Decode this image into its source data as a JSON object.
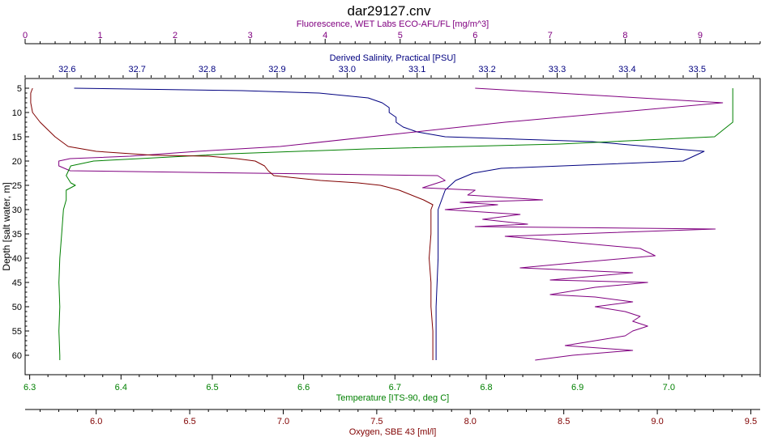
{
  "chart_data": {
    "type": "line",
    "title": "dar29127.cnv",
    "grid": false,
    "y_axis": {
      "label": "Depth [salt water, m]",
      "range": [
        64,
        3
      ],
      "ticks": [
        5,
        10,
        15,
        20,
        25,
        30,
        35,
        40,
        45,
        50,
        55,
        60
      ]
    },
    "x_axes": [
      {
        "key": "fluorescence",
        "label": "Fluorescence, WET Labs ECO-AFL/FL [mg/m^3]",
        "position": "top-1",
        "color": "#800080",
        "range": [
          0,
          9.8
        ],
        "ticks": [
          0,
          1,
          2,
          3,
          4,
          5,
          6,
          7,
          8,
          9
        ]
      },
      {
        "key": "salinity",
        "label": "Derived Salinity, Practical [PSU]",
        "position": "top-2",
        "color": "#000080",
        "range": [
          32.54,
          33.59
        ],
        "ticks": [
          "32.6",
          "32.7",
          "32.8",
          "32.9",
          "33.0",
          "33.1",
          "33.2",
          "33.3",
          "33.4",
          "33.5"
        ]
      },
      {
        "key": "temperature",
        "label": "Temperature [ITS-90, deg C]",
        "position": "bottom-1",
        "color": "#008000",
        "range": [
          6.295,
          7.1
        ],
        "ticks": [
          "6.3",
          "6.4",
          "6.5",
          "6.6",
          "6.7",
          "6.8",
          "6.9",
          "7.0"
        ]
      },
      {
        "key": "oxygen",
        "label": "Oxygen, SBE 43 [ml/l]",
        "position": "bottom-2",
        "color": "#800000",
        "range": [
          5.62,
          9.55
        ],
        "ticks": [
          "6.0",
          "6.5",
          "7.0",
          "7.5",
          "8.0",
          "8.5",
          "9.0",
          "9.5"
        ]
      }
    ],
    "series": [
      {
        "axis": "salinity",
        "color": "#000080",
        "points": [
          [
            32.61,
            5
          ],
          [
            32.85,
            5.5
          ],
          [
            32.96,
            6
          ],
          [
            33.03,
            7
          ],
          [
            33.05,
            8
          ],
          [
            33.06,
            9
          ],
          [
            33.06,
            10
          ],
          [
            33.07,
            11
          ],
          [
            33.07,
            12
          ],
          [
            33.08,
            13
          ],
          [
            33.1,
            14
          ],
          [
            33.14,
            15
          ],
          [
            33.35,
            16
          ],
          [
            33.51,
            18
          ],
          [
            33.48,
            20
          ],
          [
            33.22,
            21.5
          ],
          [
            33.18,
            22.5
          ],
          [
            33.155,
            24
          ],
          [
            33.14,
            26
          ],
          [
            33.13,
            30
          ],
          [
            33.13,
            40
          ],
          [
            33.127,
            50
          ],
          [
            33.127,
            61
          ]
        ]
      },
      {
        "axis": "fluorescence",
        "color": "#800080",
        "points": [
          [
            6.0,
            5
          ],
          [
            9.3,
            8
          ],
          [
            6.4,
            12
          ],
          [
            3.4,
            17
          ],
          [
            2.3,
            18
          ],
          [
            1.4,
            19
          ],
          [
            0.6,
            19.5
          ],
          [
            0.45,
            20
          ],
          [
            0.45,
            21
          ],
          [
            0.6,
            22
          ],
          [
            5.5,
            23
          ],
          [
            5.6,
            24
          ],
          [
            5.3,
            25.5
          ],
          [
            6,
            26
          ],
          [
            5.9,
            27
          ],
          [
            6.9,
            28
          ],
          [
            5.8,
            28.5
          ],
          [
            6.3,
            29
          ],
          [
            5.6,
            30
          ],
          [
            6.6,
            31
          ],
          [
            6.1,
            32
          ],
          [
            6.7,
            33
          ],
          [
            6.0,
            33.5
          ],
          [
            9.2,
            34
          ],
          [
            6.4,
            35.5
          ],
          [
            8.2,
            38
          ],
          [
            8.4,
            39.5
          ],
          [
            7.3,
            41
          ],
          [
            6.6,
            42
          ],
          [
            8.1,
            43
          ],
          [
            7.0,
            44.5
          ],
          [
            8.3,
            45
          ],
          [
            7.6,
            46
          ],
          [
            7.0,
            47.5
          ],
          [
            7.6,
            48
          ],
          [
            8.1,
            49
          ],
          [
            7.6,
            50
          ],
          [
            8.0,
            51
          ],
          [
            8.2,
            52
          ],
          [
            8.1,
            53
          ],
          [
            8.3,
            54
          ],
          [
            8.1,
            55
          ],
          [
            8.0,
            56
          ],
          [
            7.6,
            57
          ],
          [
            7.2,
            58
          ],
          [
            8.1,
            59
          ],
          [
            7.3,
            60
          ],
          [
            6.8,
            61
          ]
        ]
      },
      {
        "axis": "temperature",
        "color": "#008000",
        "points": [
          [
            7.07,
            5
          ],
          [
            7.07,
            8
          ],
          [
            7.07,
            10
          ],
          [
            7.07,
            12
          ],
          [
            7.05,
            15
          ],
          [
            6.88,
            16.5
          ],
          [
            6.67,
            17.5
          ],
          [
            6.52,
            18.5
          ],
          [
            6.45,
            19.2
          ],
          [
            6.37,
            20
          ],
          [
            6.345,
            21
          ],
          [
            6.34,
            23
          ],
          [
            6.345,
            24.5
          ],
          [
            6.35,
            25
          ],
          [
            6.34,
            26
          ],
          [
            6.34,
            28
          ],
          [
            6.337,
            30
          ],
          [
            6.335,
            35
          ],
          [
            6.333,
            40
          ],
          [
            6.332,
            45
          ],
          [
            6.333,
            50
          ],
          [
            6.332,
            55
          ],
          [
            6.333,
            60
          ],
          [
            6.333,
            61
          ]
        ]
      },
      {
        "axis": "oxygen",
        "color": "#800000",
        "points": [
          [
            5.66,
            5
          ],
          [
            5.65,
            6
          ],
          [
            5.65,
            8
          ],
          [
            5.66,
            10
          ],
          [
            5.7,
            12
          ],
          [
            5.78,
            15
          ],
          [
            5.85,
            17
          ],
          [
            6.0,
            18
          ],
          [
            6.3,
            18.8
          ],
          [
            6.6,
            19
          ],
          [
            6.75,
            19.5
          ],
          [
            6.85,
            20
          ],
          [
            6.9,
            21
          ],
          [
            6.92,
            22
          ],
          [
            6.95,
            23
          ],
          [
            7.2,
            24
          ],
          [
            7.4,
            24.5
          ],
          [
            7.52,
            25
          ],
          [
            7.62,
            26
          ],
          [
            7.75,
            28
          ],
          [
            7.8,
            29
          ],
          [
            7.79,
            30
          ],
          [
            7.79,
            35
          ],
          [
            7.78,
            40
          ],
          [
            7.79,
            45
          ],
          [
            7.79,
            50
          ],
          [
            7.8,
            55
          ],
          [
            7.8,
            60
          ],
          [
            7.8,
            61
          ]
        ]
      }
    ]
  }
}
